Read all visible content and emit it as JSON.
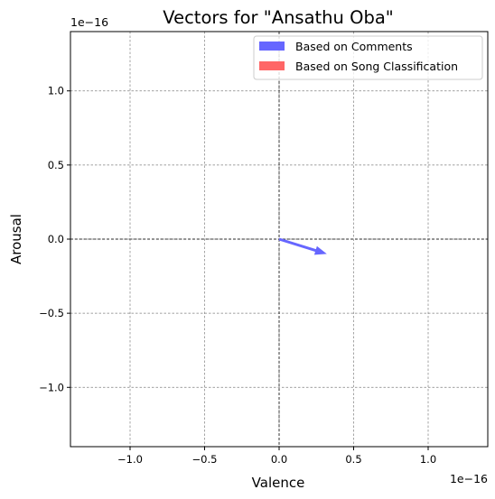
{
  "chart_data": {
    "type": "quiver",
    "title": "Vectors for \"Ansathu Oba\"",
    "xlabel": "Valence",
    "ylabel": "Arousal",
    "xlim": [
      -1.4e-16,
      1.4e-16
    ],
    "ylim": [
      -1.4e-16,
      1.4e-16
    ],
    "x_ticks": [
      -1e-16,
      -5e-17,
      0,
      5e-17,
      1e-16
    ],
    "y_ticks": [
      -1e-16,
      -5e-17,
      0,
      5e-17,
      1e-16
    ],
    "x_tick_labels": [
      "−1.0",
      "−0.5",
      "0.0",
      "0.5",
      "1.0"
    ],
    "y_tick_labels": [
      "−1.0",
      "−0.5",
      "0.0",
      "0.5",
      "1.0"
    ],
    "x_offset_text": "1e−16",
    "y_offset_text": "1e−16",
    "grid": true,
    "legend_position": "upper-right",
    "series": [
      {
        "name": "Based on Comments",
        "color": "#6666ff",
        "vectors": [
          {
            "x0": 0,
            "y0": 0,
            "dx": 3.2e-17,
            "dy": -1e-17
          }
        ]
      },
      {
        "name": "Based on Song Classification",
        "color": "#ff6666",
        "vectors": []
      }
    ]
  }
}
